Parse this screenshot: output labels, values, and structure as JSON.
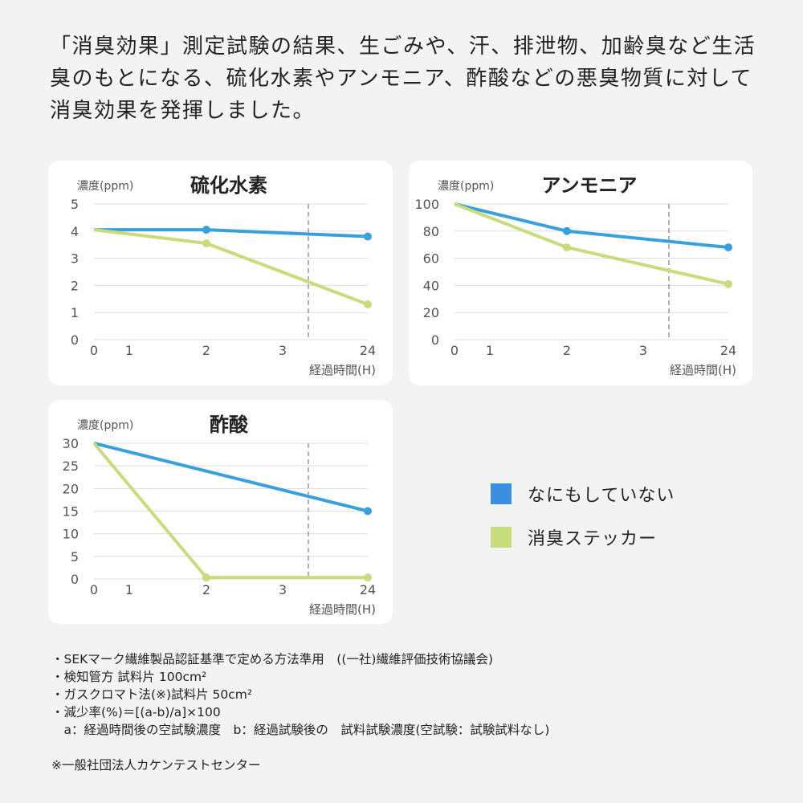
{
  "intro": "「消臭効果」測定試験の結果、生ごみや、汗、排泄物、加齢臭など生活臭のもとになる、硫化水素やアンモニア、酢酸などの悪臭物質に対して消臭効果を発揮しました。",
  "colors": {
    "none": "#3aa0dc",
    "sticker": "#c7dc7a"
  },
  "legend": [
    {
      "label": "なにもしていない",
      "color": "#3a8fe0"
    },
    {
      "label": "消臭ステッカー",
      "color": "#c7dc7a"
    }
  ],
  "chart_data": [
    {
      "type": "line",
      "title": "硫化水素",
      "ylabel": "濃度(ppm)",
      "xlabel": "経過時間(H)",
      "x_ticks": [
        "0",
        "1",
        "2",
        "3",
        "24"
      ],
      "ylim": [
        0,
        5
      ],
      "y_ticks": [
        0,
        1,
        2,
        3,
        4,
        5
      ],
      "grid": true,
      "axis_break_marker": "dashed vertical line between 3 and 24",
      "series": [
        {
          "name": "なにもしていない",
          "x": [
            0,
            2,
            24
          ],
          "y": [
            4.05,
            4.05,
            3.8
          ],
          "markers_at": [
            2,
            24
          ]
        },
        {
          "name": "消臭ステッカー",
          "x": [
            0,
            2,
            24
          ],
          "y": [
            4.05,
            3.55,
            1.3
          ],
          "markers_at": [
            2,
            24
          ]
        }
      ]
    },
    {
      "type": "line",
      "title": "アンモニア",
      "ylabel": "濃度(ppm)",
      "xlabel": "経過時間(H)",
      "x_ticks": [
        "0",
        "1",
        "2",
        "3",
        "24"
      ],
      "ylim": [
        0,
        100
      ],
      "y_ticks": [
        0,
        20,
        40,
        60,
        80,
        100
      ],
      "grid": true,
      "axis_break_marker": "dashed vertical line between 3 and 24",
      "series": [
        {
          "name": "なにもしていない",
          "x": [
            0,
            2,
            24
          ],
          "y": [
            100,
            80,
            68
          ],
          "markers_at": [
            2,
            24
          ]
        },
        {
          "name": "消臭ステッカー",
          "x": [
            0,
            2,
            24
          ],
          "y": [
            100,
            68,
            41
          ],
          "markers_at": [
            2,
            24
          ]
        }
      ]
    },
    {
      "type": "line",
      "title": "酢酸",
      "ylabel": "濃度(ppm)",
      "xlabel": "経過時間(H)",
      "x_ticks": [
        "0",
        "1",
        "2",
        "3",
        "24"
      ],
      "ylim": [
        0,
        30
      ],
      "y_ticks": [
        0,
        5,
        10,
        15,
        20,
        25,
        30
      ],
      "grid": true,
      "axis_break_marker": "dashed vertical line between 3 and 24",
      "series": [
        {
          "name": "なにもしていない",
          "x": [
            0,
            24
          ],
          "y": [
            30,
            15
          ],
          "markers_at": [
            24
          ]
        },
        {
          "name": "消臭ステッカー",
          "x": [
            0,
            2,
            24
          ],
          "y": [
            30,
            0.3,
            0.3
          ],
          "markers_at": [
            2,
            24
          ]
        }
      ]
    }
  ],
  "notes": [
    "・SEKマーク繊維製品認証基準で定める方法準用　((一社)繊維評価技術協議会)",
    "・検知管方 試料片 100cm²",
    "・ガスクロマト法(※)試料片 50cm²",
    "・減少率(%)＝[(a-b)/a]×100",
    "　a：経過時間後の空試験濃度　b：経過試験後の　試料試験濃度(空試験：試験試料なし)",
    "",
    "※一般社団法人カケンテストセンター"
  ]
}
